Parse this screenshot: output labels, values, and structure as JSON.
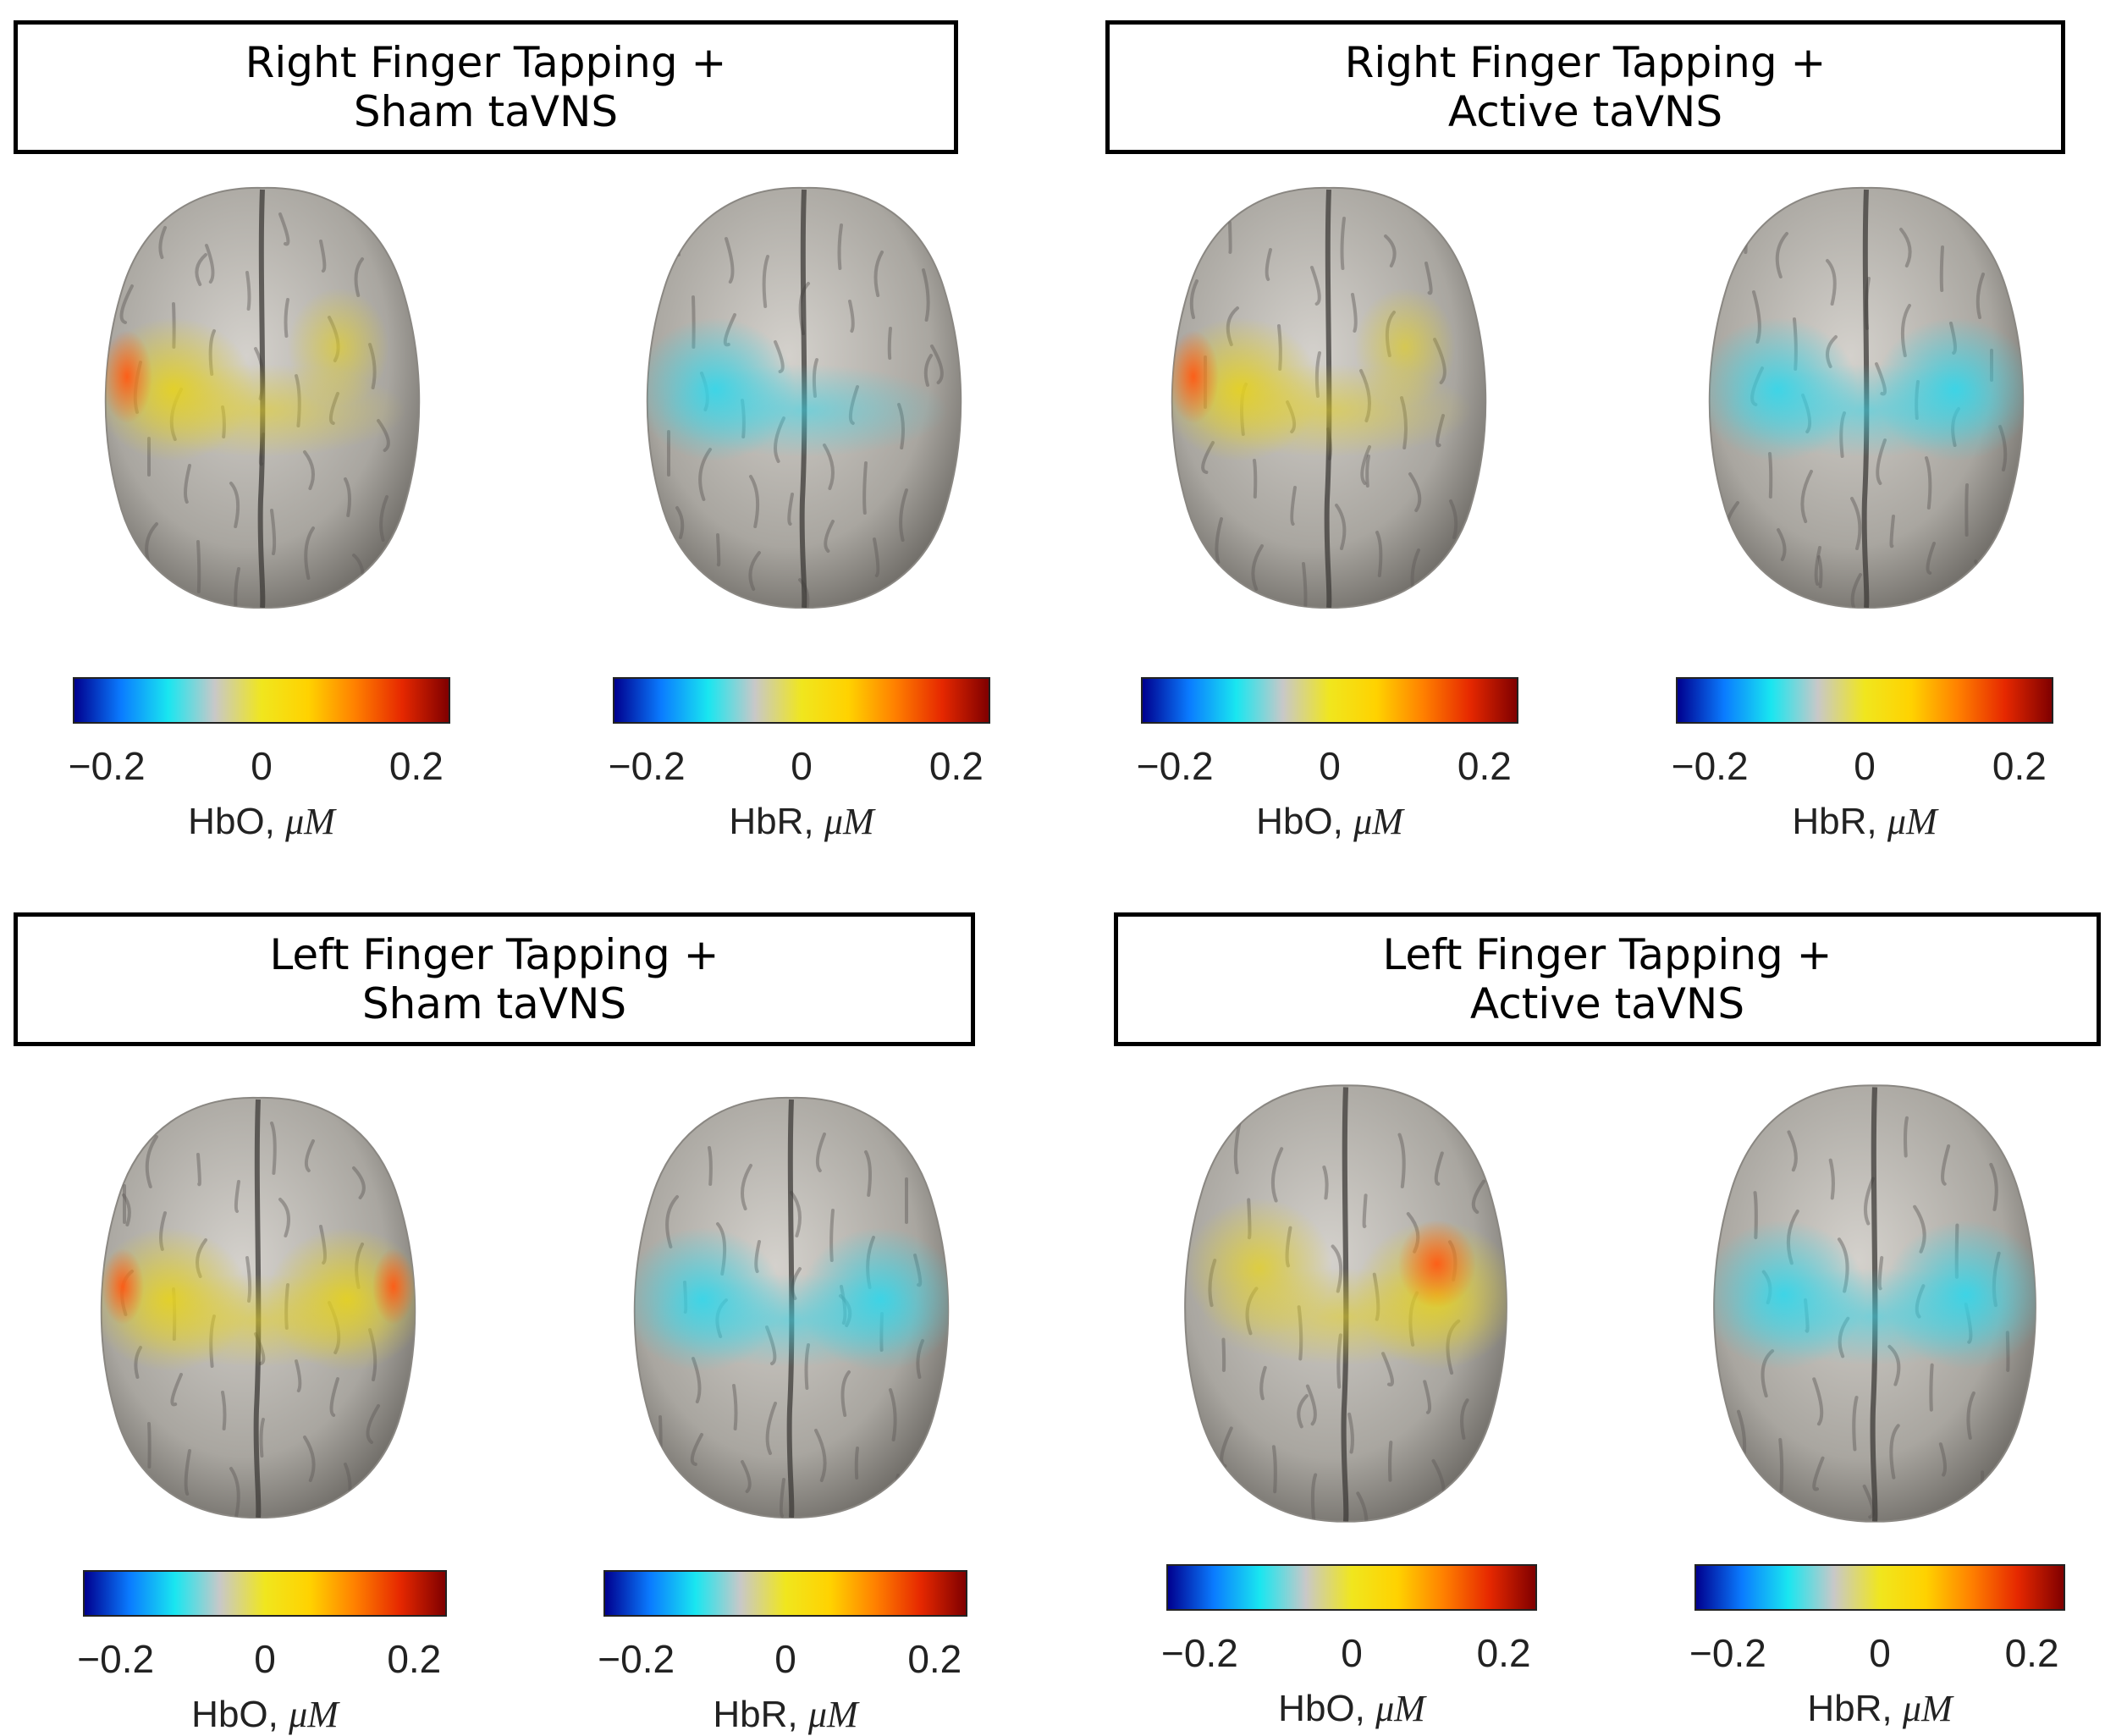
{
  "panels": [
    {
      "title_line1": "Right Finger Tapping +",
      "title_line2": "Sham taVNS"
    },
    {
      "title_line1": "Right Finger Tapping +",
      "title_line2": "Active taVNS"
    },
    {
      "title_line1": "Left Finger Tapping +",
      "title_line2": "Sham taVNS"
    },
    {
      "title_line1": "Left Finger Tapping +",
      "title_line2": "Active taVNS"
    }
  ],
  "colorbar": {
    "ticks": [
      "−0.2",
      "0",
      "0.2"
    ],
    "hbo_label": "HbO,",
    "hbr_label": "HbR,",
    "unit": "μM"
  },
  "colormap": [
    "#00008f",
    "#0a7cff",
    "#19e6f0",
    "#c8c8c8",
    "#f0e61e",
    "#ffd200",
    "#ff8000",
    "#e62800",
    "#800000"
  ],
  "activation_colors": {
    "hbo": "#e6d21e",
    "hbo_peak": "#ff5a14",
    "hbr": "#32d7eb"
  }
}
